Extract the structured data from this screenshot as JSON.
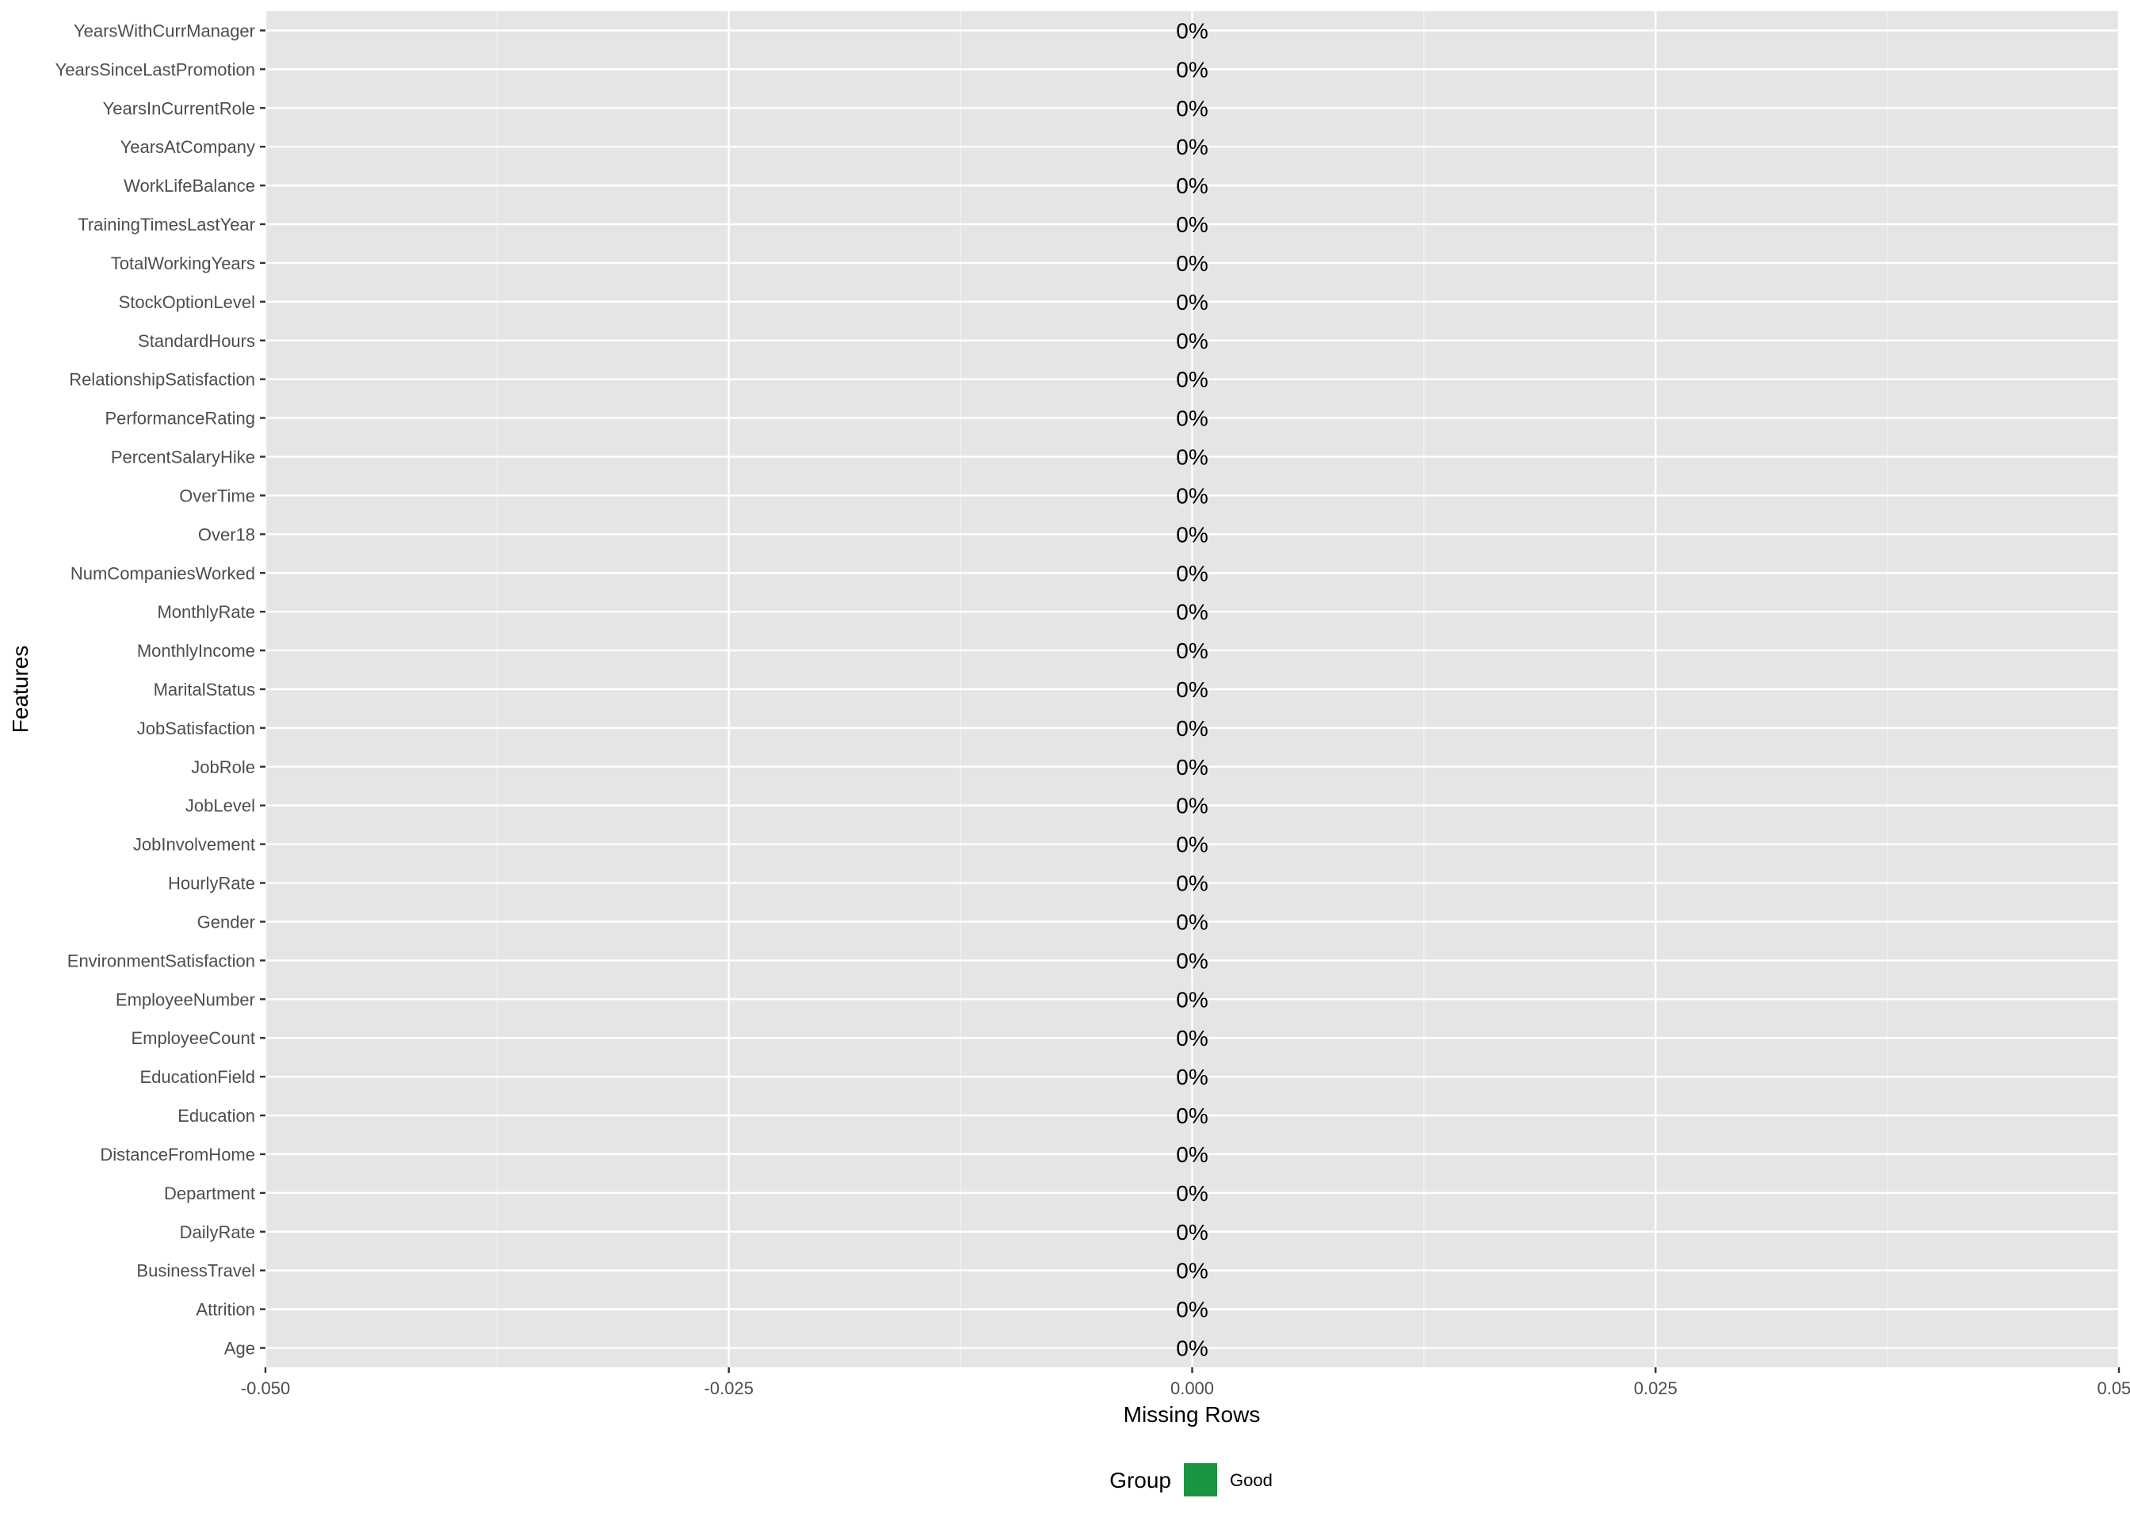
{
  "chart_data": {
    "type": "bar",
    "orientation": "horizontal",
    "categories": [
      "YearsWithCurrManager",
      "YearsSinceLastPromotion",
      "YearsInCurrentRole",
      "YearsAtCompany",
      "WorkLifeBalance",
      "TrainingTimesLastYear",
      "TotalWorkingYears",
      "StockOptionLevel",
      "StandardHours",
      "RelationshipSatisfaction",
      "PerformanceRating",
      "PercentSalaryHike",
      "OverTime",
      "Over18",
      "NumCompaniesWorked",
      "MonthlyRate",
      "MonthlyIncome",
      "MaritalStatus",
      "JobSatisfaction",
      "JobRole",
      "JobLevel",
      "JobInvolvement",
      "HourlyRate",
      "Gender",
      "EnvironmentSatisfaction",
      "EmployeeNumber",
      "EmployeeCount",
      "EducationField",
      "Education",
      "DistanceFromHome",
      "Department",
      "DailyRate",
      "BusinessTravel",
      "Attrition",
      "Age"
    ],
    "values": [
      0,
      0,
      0,
      0,
      0,
      0,
      0,
      0,
      0,
      0,
      0,
      0,
      0,
      0,
      0,
      0,
      0,
      0,
      0,
      0,
      0,
      0,
      0,
      0,
      0,
      0,
      0,
      0,
      0,
      0,
      0,
      0,
      0,
      0,
      0
    ],
    "bar_labels": [
      "0%",
      "0%",
      "0%",
      "0%",
      "0%",
      "0%",
      "0%",
      "0%",
      "0%",
      "0%",
      "0%",
      "0%",
      "0%",
      "0%",
      "0%",
      "0%",
      "0%",
      "0%",
      "0%",
      "0%",
      "0%",
      "0%",
      "0%",
      "0%",
      "0%",
      "0%",
      "0%",
      "0%",
      "0%",
      "0%",
      "0%",
      "0%",
      "0%",
      "0%",
      "0%"
    ],
    "groups": [
      "Good",
      "Good",
      "Good",
      "Good",
      "Good",
      "Good",
      "Good",
      "Good",
      "Good",
      "Good",
      "Good",
      "Good",
      "Good",
      "Good",
      "Good",
      "Good",
      "Good",
      "Good",
      "Good",
      "Good",
      "Good",
      "Good",
      "Good",
      "Good",
      "Good",
      "Good",
      "Good",
      "Good",
      "Good",
      "Good",
      "Good",
      "Good",
      "Good",
      "Good",
      "Good"
    ],
    "xlim": [
      -0.05,
      0.05
    ],
    "xticks": [
      -0.05,
      -0.025,
      0,
      0.025,
      0.05
    ],
    "xtick_labels": [
      "-0.050",
      "-0.025",
      "0.000",
      "0.025",
      "0.050"
    ],
    "xlabel": "Missing Rows",
    "ylabel": "Features",
    "grid": true,
    "legend": {
      "title": "Group",
      "position": "bottom",
      "entries": [
        {
          "label": "Good",
          "color": "#1a9641"
        }
      ]
    },
    "colors": {
      "panel": "#e5e5e5",
      "gridline": "#ffffff"
    }
  }
}
